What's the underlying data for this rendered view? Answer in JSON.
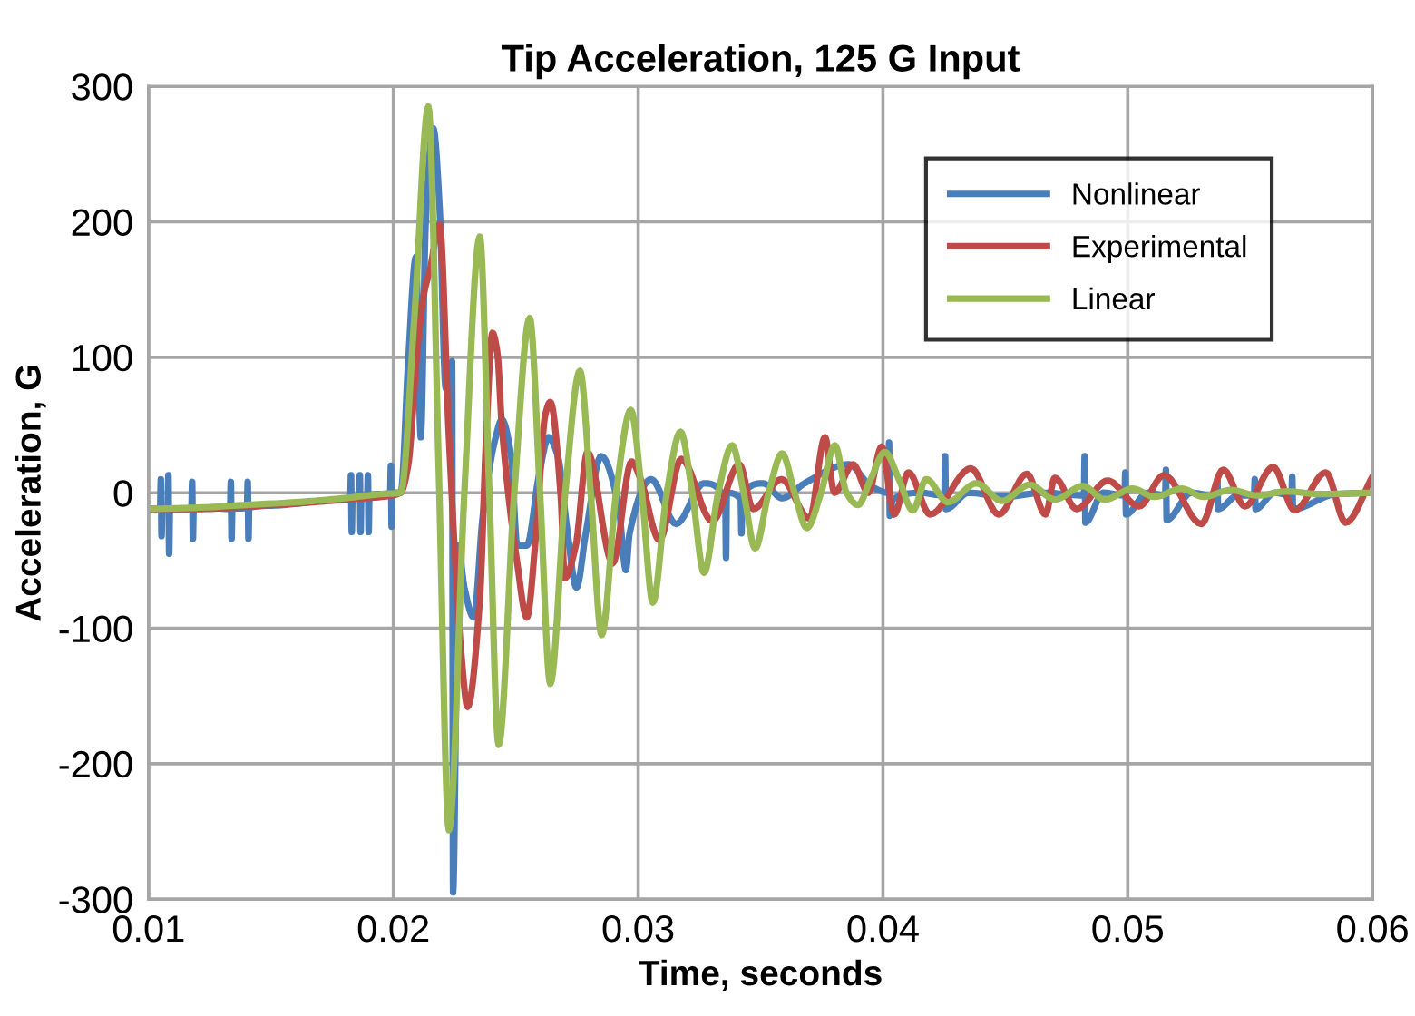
{
  "chart_data": {
    "type": "line",
    "title": "Tip Acceleration, 125 G Input",
    "xlabel": "Time, seconds",
    "ylabel": "Acceleration, G",
    "xlim": [
      0.01,
      0.06
    ],
    "xticks": [
      0.01,
      0.02,
      0.03,
      0.04,
      0.05,
      0.06
    ],
    "ylim": [
      -300,
      300
    ],
    "yticks": [
      -300,
      -200,
      -100,
      0,
      100,
      200,
      300
    ],
    "grid": true,
    "legend": "top right",
    "marker": "none",
    "line_style": "solid",
    "series": [
      {
        "name": "Nonlinear",
        "color": "#4a7ebb",
        "x": [
          0.01,
          0.01047,
          0.0105,
          0.01053,
          0.01056,
          0.01078,
          0.01081,
          0.01084,
          0.01087,
          0.0112,
          0.01175,
          0.01178,
          0.01181,
          0.01184,
          0.0125,
          0.01333,
          0.01336,
          0.01339,
          0.01342,
          0.01402,
          0.01405,
          0.01408,
          0.01411,
          0.0155,
          0.017,
          0.01824,
          0.01827,
          0.0183,
          0.01833,
          0.0186,
          0.01863,
          0.01866,
          0.01869,
          0.01893,
          0.01896,
          0.01899,
          0.01902,
          0.01987,
          0.0199,
          0.01993,
          0.01996,
          0.0203,
          0.02061,
          0.02092,
          0.02112,
          0.02132,
          0.02163,
          0.02189,
          0.02214,
          0.0224,
          0.02244,
          0.02265,
          0.0229,
          0.02328,
          0.02366,
          0.02418,
          0.02443,
          0.02481,
          0.02506,
          0.02545,
          0.02595,
          0.02634,
          0.02672,
          0.0271,
          0.02748,
          0.02786,
          0.02849,
          0.0292,
          0.0295,
          0.02965,
          0.03053,
          0.03155,
          0.03269,
          0.03356,
          0.03359,
          0.03362,
          0.03419,
          0.03422,
          0.03425,
          0.0351,
          0.03588,
          0.0368,
          0.0386,
          0.0395,
          0.04022,
          0.04025,
          0.04028,
          0.0404,
          0.0415,
          0.04251,
          0.04254,
          0.04257,
          0.0435,
          0.045,
          0.0465,
          0.04821,
          0.04824,
          0.04827,
          0.049,
          0.04987,
          0.0499,
          0.04993,
          0.0508,
          0.05153,
          0.05156,
          0.05159,
          0.0526,
          0.05363,
          0.05366,
          0.05369,
          0.0545,
          0.05516,
          0.05519,
          0.05522,
          0.056,
          0.05669,
          0.05672,
          0.05675,
          0.0585,
          0.06
        ],
        "values": [
          -12,
          -12,
          10,
          -32,
          -12,
          -12,
          13,
          -45,
          -12,
          -12,
          -12,
          8,
          -34,
          -12,
          -11,
          -12,
          8,
          -34,
          -12,
          -11,
          8,
          -34,
          -11,
          -9,
          -6,
          -4,
          13,
          -29,
          -3,
          -3,
          13,
          -29,
          -3,
          -2,
          13,
          -29,
          -2,
          0,
          20,
          -25,
          0,
          0,
          98,
          174,
          41,
          200,
          269,
          210,
          77,
          97,
          -295,
          -39,
          -70,
          -92,
          -16,
          41,
          54,
          27,
          -39,
          -39,
          13,
          41,
          27,
          -27,
          -70,
          -30,
          27,
          -10,
          -57,
          -30,
          10,
          -23,
          7,
          -5,
          -48,
          0,
          -5,
          -30,
          -2,
          7,
          -4,
          7,
          21,
          5,
          0,
          37,
          -17,
          -5,
          0,
          -2,
          27,
          -12,
          0,
          -3,
          0,
          -2,
          27,
          -22,
          0,
          -2,
          15,
          -16,
          0,
          -2,
          17,
          -20,
          0,
          -3,
          10,
          -12,
          -2,
          -2,
          10,
          -12,
          0,
          -2,
          12,
          -12,
          -1,
          0
        ]
      },
      {
        "name": "Experimental",
        "color": "#be4b48",
        "x": [
          0.01,
          0.012,
          0.014,
          0.016,
          0.018,
          0.0195,
          0.0203,
          0.0206,
          0.021,
          0.02125,
          0.0215,
          0.02189,
          0.02227,
          0.02277,
          0.02303,
          0.02353,
          0.02379,
          0.02405,
          0.02425,
          0.02443,
          0.02506,
          0.02545,
          0.02583,
          0.02621,
          0.02641,
          0.02684,
          0.027,
          0.02745,
          0.02793,
          0.02896,
          0.02973,
          0.0301,
          0.03087,
          0.03176,
          0.03303,
          0.03413,
          0.0347,
          0.03585,
          0.037,
          0.03763,
          0.03802,
          0.03878,
          0.0394,
          0.03995,
          0.04046,
          0.04104,
          0.04193,
          0.04359,
          0.04473,
          0.04588,
          0.04664,
          0.04702,
          0.04791,
          0.04918,
          0.05046,
          0.05148,
          0.05301,
          0.0539,
          0.05479,
          0.05594,
          0.05682,
          0.05809,
          0.0589,
          0.06
        ],
        "values": [
          -12,
          -12,
          -10,
          -8,
          -5,
          -3,
          0,
          20,
          110,
          147,
          165,
          198,
          41,
          -118,
          -158,
          -79,
          41,
          118,
          103,
          50,
          -52,
          -92,
          -30,
          58,
          67,
          -3,
          -63,
          -39,
          30,
          -52,
          23,
          10,
          -35,
          25,
          -21,
          21,
          -12,
          10,
          -19,
          41,
          0,
          21,
          0,
          34,
          -16,
          15,
          -16,
          18,
          -16,
          14,
          -16,
          11,
          -12,
          9,
          -10,
          13,
          -23,
          17,
          -10,
          19,
          -13,
          15,
          -22,
          12
        ]
      },
      {
        "name": "Linear",
        "color": "#98b954",
        "x": [
          0.01,
          0.012,
          0.014,
          0.016,
          0.018,
          0.0195,
          0.0203,
          0.02086,
          0.02143,
          0.02185,
          0.02227,
          0.0229,
          0.02353,
          0.02392,
          0.0243,
          0.02494,
          0.02557,
          0.02599,
          0.02641,
          0.02702,
          0.02762,
          0.02806,
          0.02851,
          0.0291,
          0.0297,
          0.03015,
          0.0306,
          0.03117,
          0.03173,
          0.03221,
          0.03269,
          0.03327,
          0.03384,
          0.03431,
          0.03478,
          0.03533,
          0.03588,
          0.03639,
          0.03689,
          0.03747,
          0.03804,
          0.03851,
          0.03898,
          0.0395,
          0.04008,
          0.04065,
          0.04122,
          0.04177,
          0.04265,
          0.04382,
          0.04486,
          0.046,
          0.04702,
          0.04817,
          0.04906,
          0.0502,
          0.0511,
          0.0522,
          0.0531,
          0.0542,
          0.0553,
          0.0565,
          0.0578,
          0.06
        ],
        "values": [
          -12,
          -11,
          -9,
          -7,
          -4,
          -1,
          0,
          130,
          285,
          20,
          -249,
          0,
          189,
          0,
          -186,
          0,
          129,
          0,
          -141,
          0,
          90,
          0,
          -105,
          0,
          61,
          0,
          -81,
          0,
          45,
          0,
          -59,
          0,
          35,
          0,
          -41,
          0,
          29,
          0,
          -26,
          0,
          35,
          0,
          -9,
          10,
          30,
          10,
          -13,
          10,
          -7,
          7,
          -6,
          6,
          -5,
          5,
          -5,
          3,
          -3,
          3,
          -3,
          2,
          -2,
          1,
          -1,
          0
        ]
      }
    ]
  }
}
